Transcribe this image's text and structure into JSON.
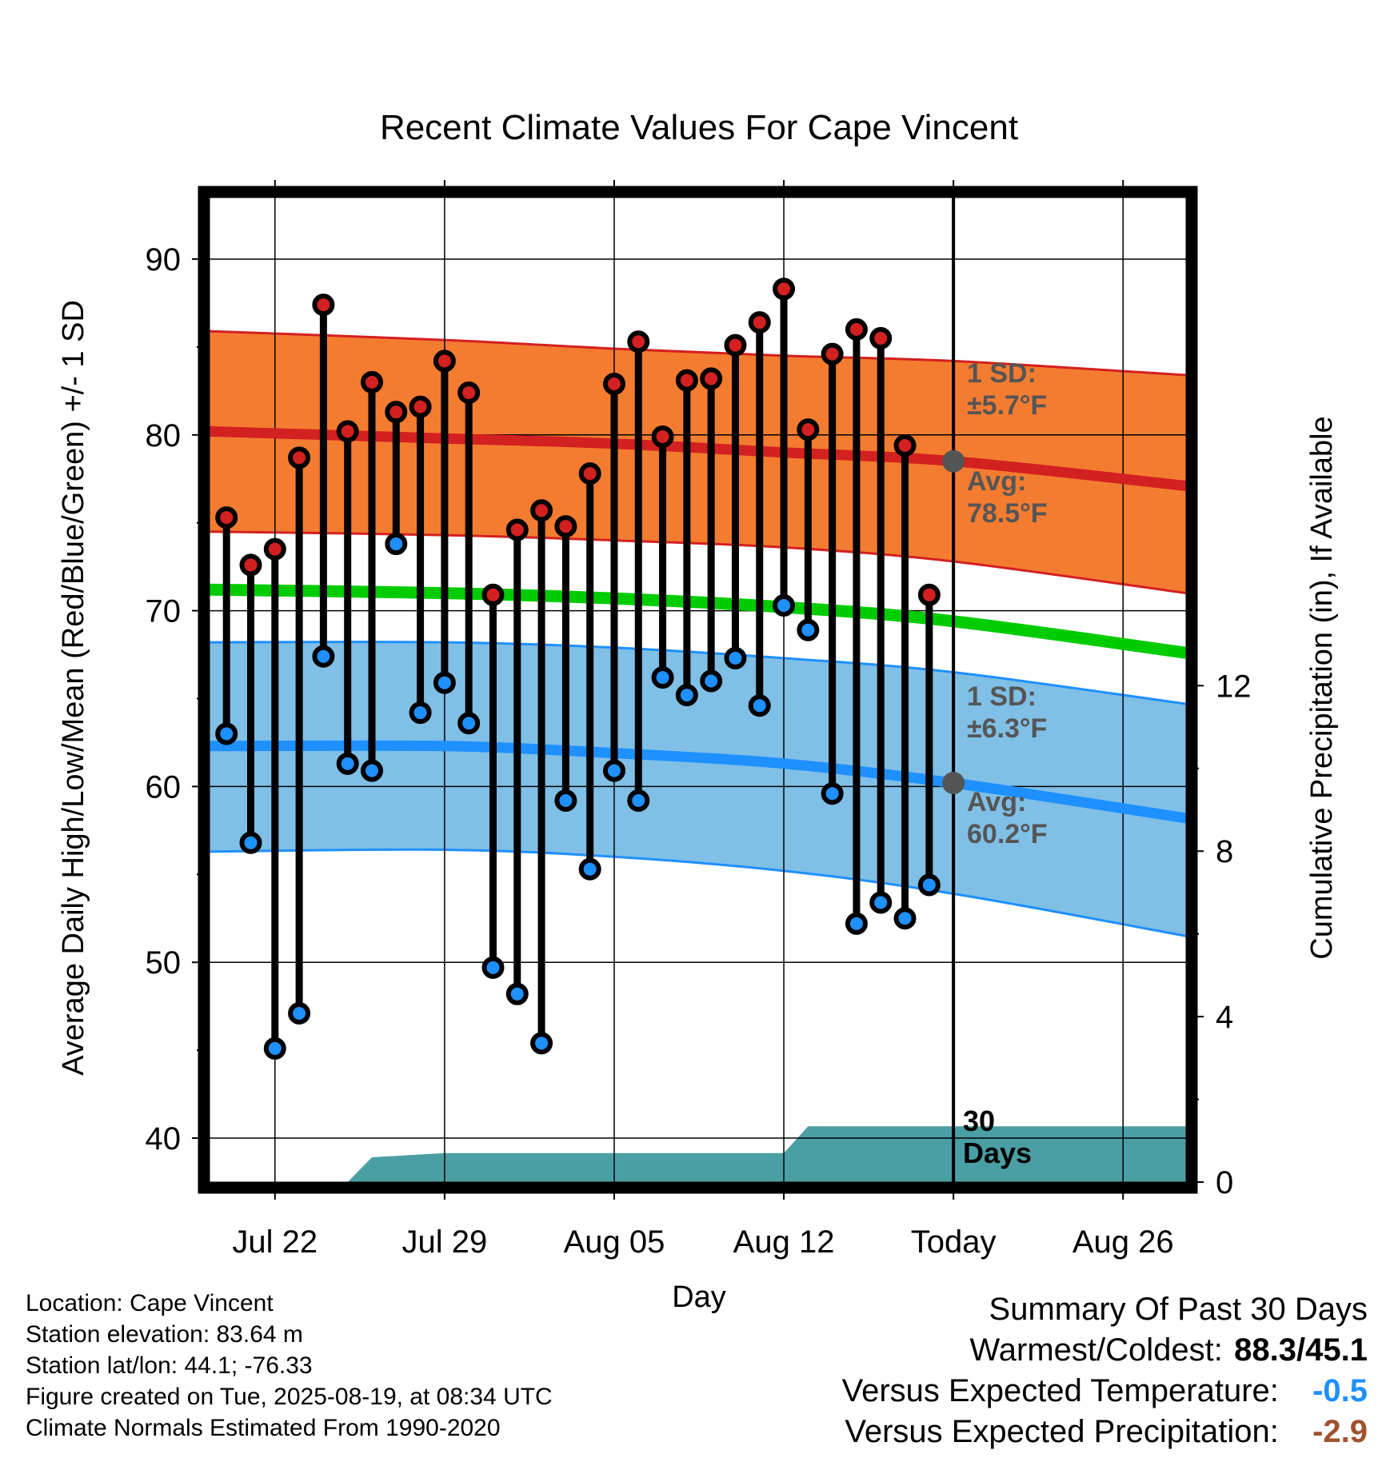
{
  "chart_data": {
    "type": "line",
    "title": "Recent Climate Values For Cape Vincent",
    "xlabel": "Day",
    "ylabel": "Average Daily High/Low/Mean (Red/Blue/Green) +/- 1 SD",
    "y2label": "Cumulative Precipitation (in), If Available",
    "x_tick_labels": [
      "Jul 22",
      "Jul 29",
      "Aug 05",
      "Aug 12",
      "Today",
      "Aug 26"
    ],
    "x_tick_days": [
      3,
      10,
      17,
      24,
      31,
      38
    ],
    "xlim": [
      0.3,
      40.6
    ],
    "ylim": [
      37.5,
      93.5
    ],
    "y_ticks": [
      40,
      50,
      60,
      70,
      80,
      90
    ],
    "y2lim": [
      0,
      23.8
    ],
    "y2_ticks": [
      0,
      4,
      8,
      12
    ],
    "grid": true,
    "today_day": 31,
    "days_label": [
      "30",
      "Days"
    ],
    "normals": {
      "day": [
        0.3,
        10,
        17,
        24,
        31,
        40.6
      ],
      "high_mean": [
        80.2,
        79.8,
        79.5,
        79.0,
        78.5,
        77.1
      ],
      "high_upper": [
        85.9,
        85.4,
        84.9,
        84.5,
        84.2,
        83.4
      ],
      "high_lower": [
        74.5,
        74.3,
        74.0,
        73.6,
        72.8,
        71.0
      ],
      "mean": [
        71.2,
        71.0,
        70.7,
        70.2,
        69.4,
        67.6
      ],
      "low_mean": [
        62.3,
        62.3,
        61.9,
        61.3,
        60.2,
        58.2
      ],
      "low_upper": [
        68.2,
        68.2,
        67.9,
        67.3,
        66.5,
        64.7
      ],
      "low_lower": [
        56.3,
        56.4,
        56.0,
        55.2,
        53.9,
        51.5
      ]
    },
    "high_sd_label": [
      "1 SD:",
      "±5.7°F"
    ],
    "high_avg_label": [
      "Avg:",
      "78.5°F"
    ],
    "low_sd_label": [
      "1 SD:",
      "±6.3°F"
    ],
    "low_avg_label": [
      "Avg:",
      "60.2°F"
    ],
    "high_avg_today": 78.5,
    "low_avg_today": 60.2,
    "observations": {
      "day": [
        1,
        2,
        3,
        4,
        5,
        6,
        7,
        8,
        9,
        10,
        11,
        12,
        13,
        14,
        15,
        16,
        17,
        18,
        19,
        20,
        21,
        22,
        23,
        24,
        25,
        26,
        27,
        28,
        29,
        30
      ],
      "high": [
        75.3,
        72.6,
        73.5,
        78.7,
        87.4,
        80.2,
        83.0,
        81.3,
        81.6,
        84.2,
        82.4,
        70.9,
        74.6,
        75.7,
        74.8,
        77.8,
        82.9,
        85.3,
        79.9,
        83.1,
        83.2,
        85.1,
        86.4,
        88.3,
        80.3,
        84.6,
        86.0,
        85.5,
        79.4,
        70.9
      ],
      "low": [
        63.0,
        56.8,
        45.1,
        47.1,
        67.4,
        61.3,
        60.9,
        73.8,
        64.2,
        65.9,
        63.6,
        49.7,
        48.2,
        45.4,
        59.2,
        55.3,
        60.9,
        59.2,
        66.2,
        65.2,
        66.0,
        67.3,
        64.6,
        70.3,
        68.9,
        59.6,
        52.2,
        53.4,
        52.5,
        54.4
      ]
    },
    "precipitation": {
      "day": [
        0.3,
        6,
        7,
        10,
        24,
        25,
        40.6
      ],
      "cumulative": [
        0,
        0,
        0.6,
        0.7,
        0.7,
        1.35,
        1.35
      ]
    },
    "colors": {
      "high_band": "#f47c30",
      "high_line": "#d32020",
      "mean_line": "#00cc00",
      "low_band": "#80bfe6",
      "low_line": "#1e90ff",
      "high_marker": "#d32020",
      "low_marker": "#1e90ff",
      "precip": "#4a9fa5",
      "annotation": "#555555",
      "today_point": "#555555"
    }
  },
  "footer": {
    "location": "Location: Cape Vincent",
    "elevation": "Station elevation: 83.64 m",
    "latlon": "Station lat/lon: 44.1; -76.33",
    "created": "Figure created on Tue, 2025-08-19, at 08:34 UTC",
    "normals": "Climate Normals Estimated From 1990-2020"
  },
  "summary": {
    "heading": "Summary Of Past 30 Days",
    "warmest_coldest_label": "Warmest/Coldest:",
    "warmest_coldest_value": "88.3/45.1",
    "temp_label": "Versus Expected Temperature:",
    "temp_value": "-0.5",
    "temp_color": "#1e90ff",
    "precip_label": "Versus Expected Precipitation:",
    "precip_value": "-2.9",
    "precip_color": "#a0522d"
  }
}
